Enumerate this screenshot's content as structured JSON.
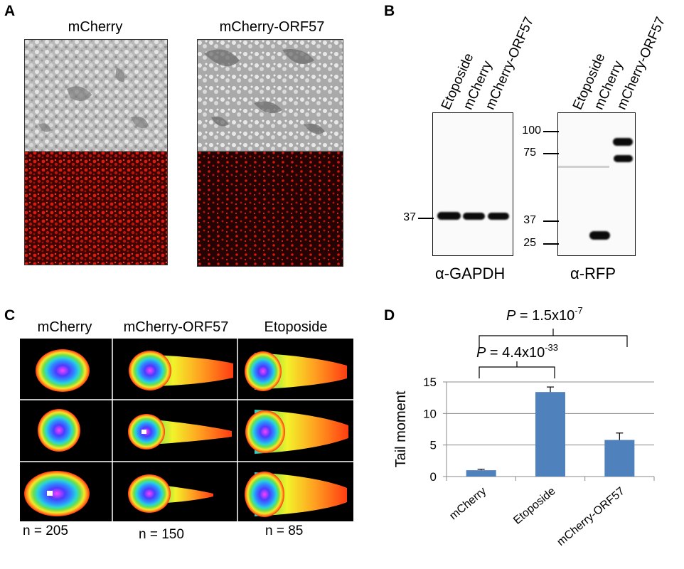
{
  "panels": {
    "A": {
      "letter": "A",
      "titles": [
        "mCherry",
        "mCherry-ORF57"
      ]
    },
    "B": {
      "letter": "B",
      "lane_labels": [
        "Etoposide",
        "mCherry",
        "mCherry-ORF57"
      ],
      "gapdh": {
        "label": "α-GAPDH",
        "markers": [
          "37"
        ]
      },
      "rfp": {
        "label": "α-RFP",
        "markers": [
          "100",
          "75",
          "37",
          "25"
        ]
      }
    },
    "C": {
      "letter": "C",
      "columns": [
        "mCherry",
        "mCherry-ORF57",
        "Etoposide"
      ],
      "counts": [
        "n = 205",
        "n = 150",
        "n = 85"
      ]
    },
    "D": {
      "letter": "D",
      "annotations": [
        {
          "label": "P = 4.4x10",
          "exponent": "-33"
        },
        {
          "label": "P = 1.5x10",
          "exponent": "-7"
        }
      ]
    }
  },
  "chart_data": {
    "type": "bar",
    "categories": [
      "mCherry",
      "Etoposide",
      "mCherry-ORF57"
    ],
    "values": [
      1.0,
      13.4,
      5.8
    ],
    "errors": [
      0.15,
      0.8,
      1.1
    ],
    "ylabel": "Tail moment",
    "xlabel": "",
    "ylim": [
      0,
      15
    ],
    "yticks": [
      0,
      5,
      10,
      15
    ],
    "grid": true,
    "bar_color": "#4f81bd"
  }
}
